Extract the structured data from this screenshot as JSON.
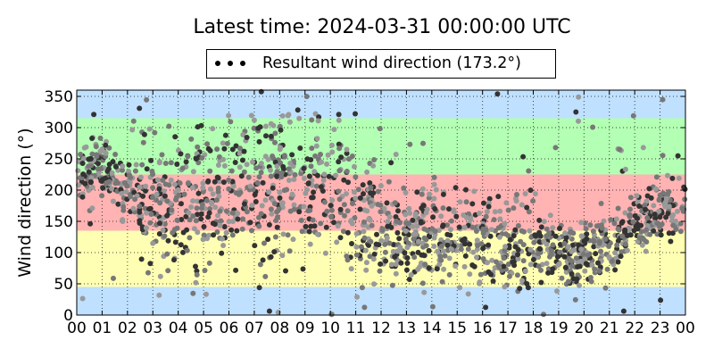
{
  "chart_data": {
    "type": "scatter",
    "title": "Latest time: 2024-03-31 00:00:00 UTC",
    "ylabel": "Wind direction (°)",
    "legend": {
      "label": "Resultant wind direction (173.2°)",
      "position": "top-center"
    },
    "xlim": [
      0,
      24
    ],
    "ylim": [
      0,
      360
    ],
    "x_ticks": [
      "00",
      "01",
      "02",
      "03",
      "04",
      "05",
      "06",
      "07",
      "08",
      "09",
      "10",
      "11",
      "12",
      "13",
      "14",
      "15",
      "16",
      "17",
      "18",
      "19",
      "20",
      "21",
      "22",
      "23",
      "00"
    ],
    "y_ticks": [
      0,
      50,
      100,
      150,
      200,
      250,
      300,
      350
    ],
    "grid": true,
    "bands": [
      {
        "from": 0,
        "to": 45,
        "color": "#bfe0ff"
      },
      {
        "from": 45,
        "to": 135,
        "color": "#ffffb3"
      },
      {
        "from": 135,
        "to": 225,
        "color": "#ffb3b3"
      },
      {
        "from": 225,
        "to": 315,
        "color": "#b3ffb3"
      },
      {
        "from": 315,
        "to": 360,
        "color": "#bfe0ff"
      }
    ],
    "series_trend": [
      {
        "x": 0,
        "y": 225
      },
      {
        "x": 1,
        "y": 228
      },
      {
        "x": 2,
        "y": 205
      },
      {
        "x": 3,
        "y": 170
      },
      {
        "x": 4,
        "y": 175
      },
      {
        "x": 5,
        "y": 185
      },
      {
        "x": 6,
        "y": 200
      },
      {
        "x": 7,
        "y": 200
      },
      {
        "x": 8,
        "y": 205
      },
      {
        "x": 9,
        "y": 215
      },
      {
        "x": 10,
        "y": 210
      },
      {
        "x": 11,
        "y": 180
      },
      {
        "x": 12,
        "y": 140
      },
      {
        "x": 13,
        "y": 125
      },
      {
        "x": 14,
        "y": 130
      },
      {
        "x": 15,
        "y": 120
      },
      {
        "x": 16,
        "y": 120
      },
      {
        "x": 17,
        "y": 110
      },
      {
        "x": 18,
        "y": 115
      },
      {
        "x": 19,
        "y": 100
      },
      {
        "x": 20,
        "y": 95
      },
      {
        "x": 21,
        "y": 120
      },
      {
        "x": 22,
        "y": 150
      },
      {
        "x": 23,
        "y": 170
      },
      {
        "x": 24,
        "y": 180
      }
    ],
    "point_color_dark": "#333333",
    "point_color_mid": "#777777",
    "point_color_light": "#999999"
  }
}
